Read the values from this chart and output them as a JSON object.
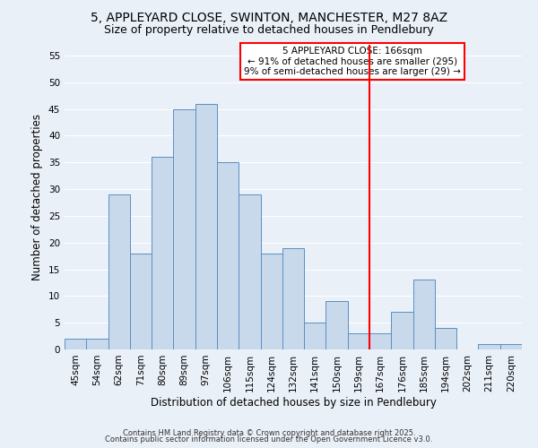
{
  "title1": "5, APPLEYARD CLOSE, SWINTON, MANCHESTER, M27 8AZ",
  "title2": "Size of property relative to detached houses in Pendlebury",
  "xlabel": "Distribution of detached houses by size in Pendlebury",
  "ylabel": "Number of detached properties",
  "categories": [
    "45sqm",
    "54sqm",
    "62sqm",
    "71sqm",
    "80sqm",
    "89sqm",
    "97sqm",
    "106sqm",
    "115sqm",
    "124sqm",
    "132sqm",
    "141sqm",
    "150sqm",
    "159sqm",
    "167sqm",
    "176sqm",
    "185sqm",
    "194sqm",
    "202sqm",
    "211sqm",
    "220sqm"
  ],
  "values": [
    2,
    2,
    29,
    18,
    36,
    45,
    46,
    35,
    29,
    18,
    19,
    5,
    9,
    3,
    3,
    7,
    13,
    4,
    0,
    1,
    1
  ],
  "bar_color": "#c9d9ec",
  "bar_edge_color": "#5a8fc2",
  "vline_color": "red",
  "vline_index": 14,
  "annotation_text": "5 APPLEYARD CLOSE: 166sqm\n← 91% of detached houses are smaller (295)\n9% of semi-detached houses are larger (29) →",
  "annotation_box_color": "white",
  "annotation_box_edge_color": "red",
  "ylim": [
    0,
    57
  ],
  "yticks": [
    0,
    5,
    10,
    15,
    20,
    25,
    30,
    35,
    40,
    45,
    50,
    55
  ],
  "background_color": "#eaf0f8",
  "grid_color": "white",
  "footer1": "Contains HM Land Registry data © Crown copyright and database right 2025.",
  "footer2": "Contains public sector information licensed under the Open Government Licence v3.0.",
  "title_fontsize": 10,
  "subtitle_fontsize": 9,
  "xlabel_fontsize": 8.5,
  "ylabel_fontsize": 8.5,
  "tick_fontsize": 7.5,
  "ann_fontsize": 7.5
}
